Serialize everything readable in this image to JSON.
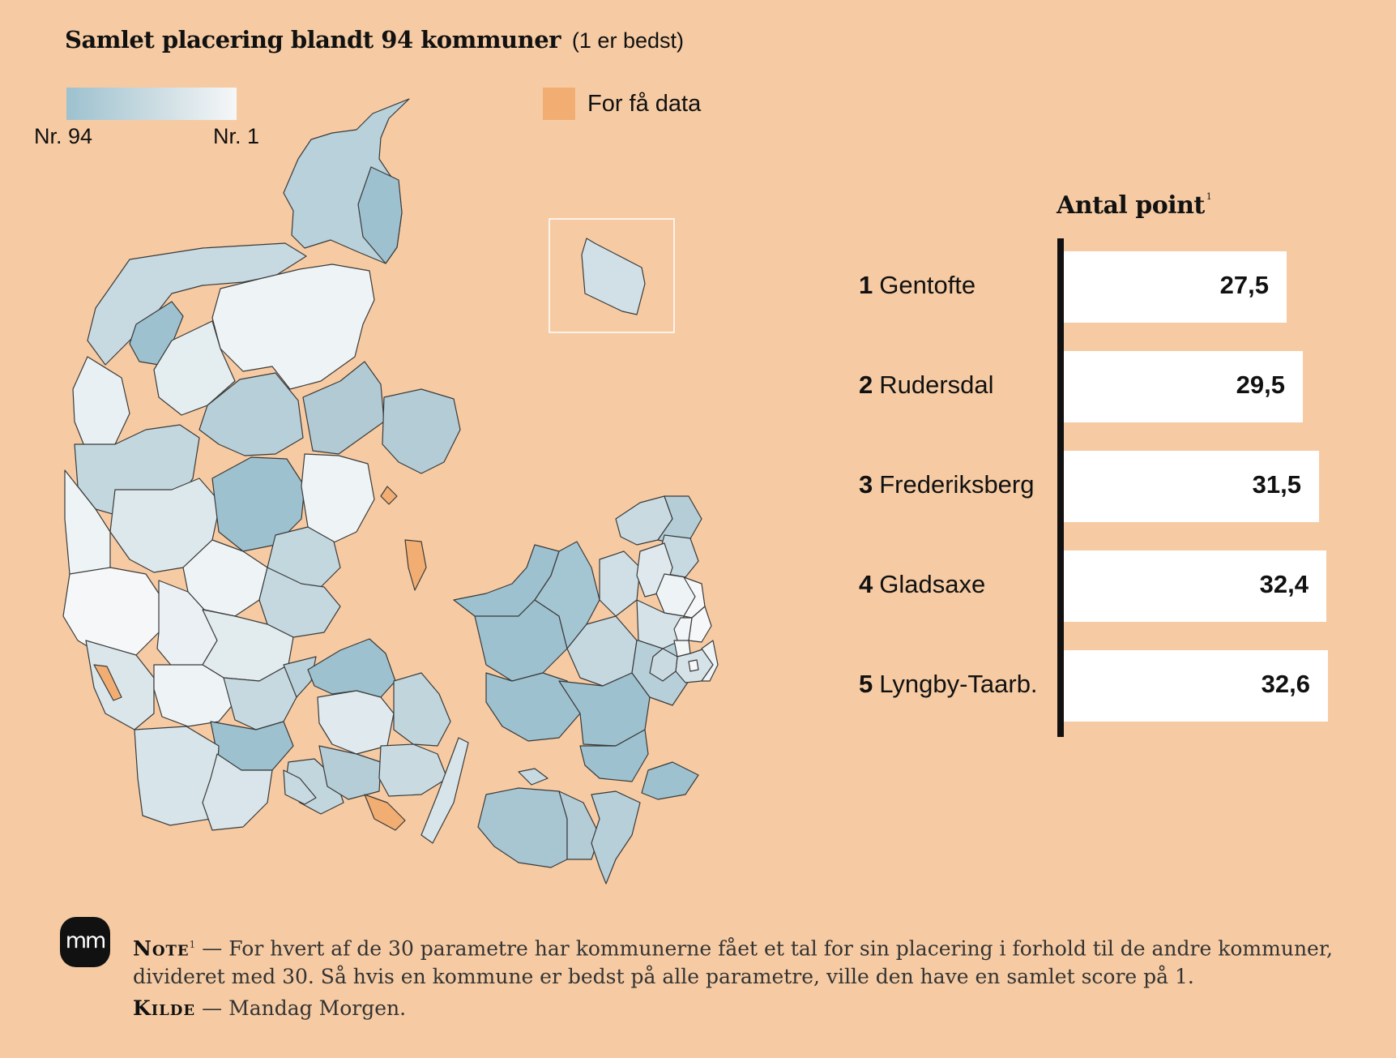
{
  "header": {
    "title": "Samlet placering blandt 94 kommuner",
    "subtitle": "(1 er bedst)"
  },
  "legend": {
    "low_label": "Nr. 94",
    "high_label": "Nr. 1",
    "nodata_label": "For få data",
    "colors": {
      "low": "#9dc1cf",
      "high": "#f5f7f8",
      "nodata": "#f2ae72",
      "background": "#f6cba3"
    }
  },
  "chart_data": [
    {
      "type": "bar",
      "orientation": "horizontal",
      "title": "Antal point",
      "title_note": "1",
      "categories": [
        "1 Gentofte",
        "2 Rudersdal",
        "3 Frederiksberg",
        "4 Gladsaxe",
        "5 Lyngby-Taarb."
      ],
      "ranks": [
        "1",
        "2",
        "3",
        "4",
        "5"
      ],
      "names": [
        "Gentofte",
        "Rudersdal",
        "Frederiksberg",
        "Gladsaxe",
        "Lyngby-Taarb."
      ],
      "values": [
        27.5,
        29.5,
        31.5,
        32.4,
        32.6
      ],
      "value_labels": [
        "27,5",
        "29,5",
        "31,5",
        "32,4",
        "32,6"
      ],
      "xlim": [
        0,
        36
      ]
    }
  ],
  "map": {
    "type": "choropleth",
    "region": "Danmark – 94 kommuner"
  },
  "footer": {
    "logo": "mm",
    "note_label": "Note",
    "note_sup": "1",
    "note_text": "For hvert af de 30 parametre har kommunerne fået et tal for sin placering i forhold til de andre kommuner, divideret med 30. Så hvis en kommune er bedst på alle parametre, ville den have en samlet score på 1.",
    "source_label": "Kilde",
    "source_text": "Mandag Morgen."
  }
}
